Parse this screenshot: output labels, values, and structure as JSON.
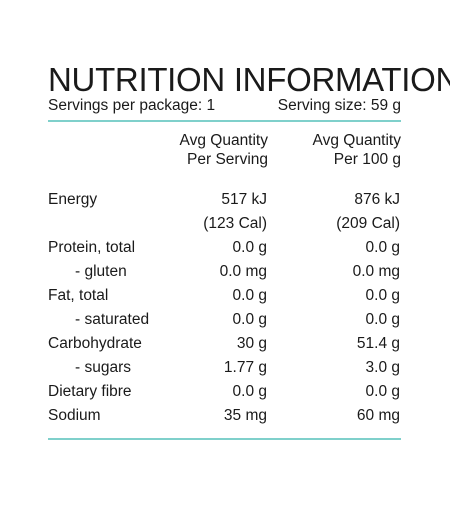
{
  "title": "NUTRITION INFORMATION",
  "servings": "Servings per package: 1",
  "serving_size": "Serving size: 59 g",
  "columns": {
    "per_serving_line1": "Avg Quantity",
    "per_serving_line2": "Per Serving",
    "per_100g_line1": "Avg Quantity",
    "per_100g_line2": "Per 100 g"
  },
  "rows": [
    {
      "label": "Energy",
      "per_serving": "517 kJ",
      "per_100g": "876 kJ"
    },
    {
      "label": "",
      "per_serving": "(123 Cal)",
      "per_100g": "(209 Cal)"
    },
    {
      "label": "Protein, total",
      "per_serving": "0.0 g",
      "per_100g": "0.0 g"
    },
    {
      "label": "- gluten",
      "per_serving": "0.0 mg",
      "per_100g": "0.0 mg"
    },
    {
      "label": "Fat, total",
      "per_serving": "0.0 g",
      "per_100g": "0.0 g"
    },
    {
      "label": "- saturated",
      "per_serving": "0.0 g",
      "per_100g": "0.0 g"
    },
    {
      "label": "Carbohydrate",
      "per_serving": "30 g",
      "per_100g": "51.4 g"
    },
    {
      "label": "- sugars",
      "per_serving": "1.77 g",
      "per_100g": "3.0 g"
    },
    {
      "label": "Dietary fibre",
      "per_serving": "0.0 g",
      "per_100g": "0.0 g"
    },
    {
      "label": "Sodium",
      "per_serving": "35 mg",
      "per_100g": "60 mg"
    }
  ],
  "colors": {
    "rule": "#7fd0cb",
    "text": "#1a1a1a",
    "background": "#ffffff"
  }
}
